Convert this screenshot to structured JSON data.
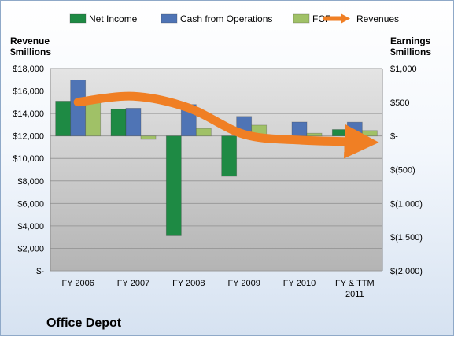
{
  "chart_data": {
    "type": "bar",
    "title": "Office Depot",
    "categories": [
      "FY 2006",
      "FY 2007",
      "FY 2008",
      "FY 2009",
      "FY 2010",
      "FY & TTM 2011"
    ],
    "category_labels": [
      [
        "FY 2006"
      ],
      [
        "FY 2007"
      ],
      [
        "FY 2008"
      ],
      [
        "FY 2009"
      ],
      [
        "FY 2010"
      ],
      [
        "FY & TTM",
        "2011"
      ]
    ],
    "left_axis": {
      "label": [
        "Revenue",
        "$millions"
      ],
      "range": [
        0,
        18000
      ],
      "ticks": [
        0,
        2000,
        4000,
        6000,
        8000,
        10000,
        12000,
        14000,
        16000,
        18000
      ],
      "tick_labels": [
        "$-",
        "$2,000",
        "$4,000",
        "$6,000",
        "$8,000",
        "$10,000",
        "$12,000",
        "$14,000",
        "$16,000",
        "$18,000"
      ]
    },
    "right_axis": {
      "label": [
        "Earnings",
        "$millions"
      ],
      "range": [
        -2000,
        1000
      ],
      "ticks": [
        -2000,
        -1500,
        -1000,
        -500,
        0,
        500,
        1000
      ],
      "tick_labels": [
        "$(2,000)",
        "$(1,500)",
        "$(1,000)",
        "$(500)",
        "$-",
        "$500",
        "$1,000"
      ]
    },
    "grid": true,
    "legend_position": "top",
    "series": [
      {
        "name": "Net Income",
        "kind": "bar",
        "axis": "right",
        "color": "#1e8a44",
        "values": [
          516,
          395,
          -1479,
          -599,
          -46,
          95
        ]
      },
      {
        "name": "Cash from Operations",
        "kind": "bar",
        "axis": "right",
        "color": "#4f74b5",
        "values": [
          830,
          411,
          466,
          290,
          206,
          204
        ]
      },
      {
        "name": "FCF",
        "kind": "bar",
        "axis": "right",
        "color": "#a0c167",
        "values": [
          500,
          -50,
          110,
          160,
          40,
          80
        ]
      },
      {
        "name": "Revenues",
        "kind": "line",
        "axis": "left",
        "color": "#f07f24",
        "values": [
          15011,
          15528,
          14495,
          12144,
          11633,
          11490
        ]
      }
    ]
  }
}
